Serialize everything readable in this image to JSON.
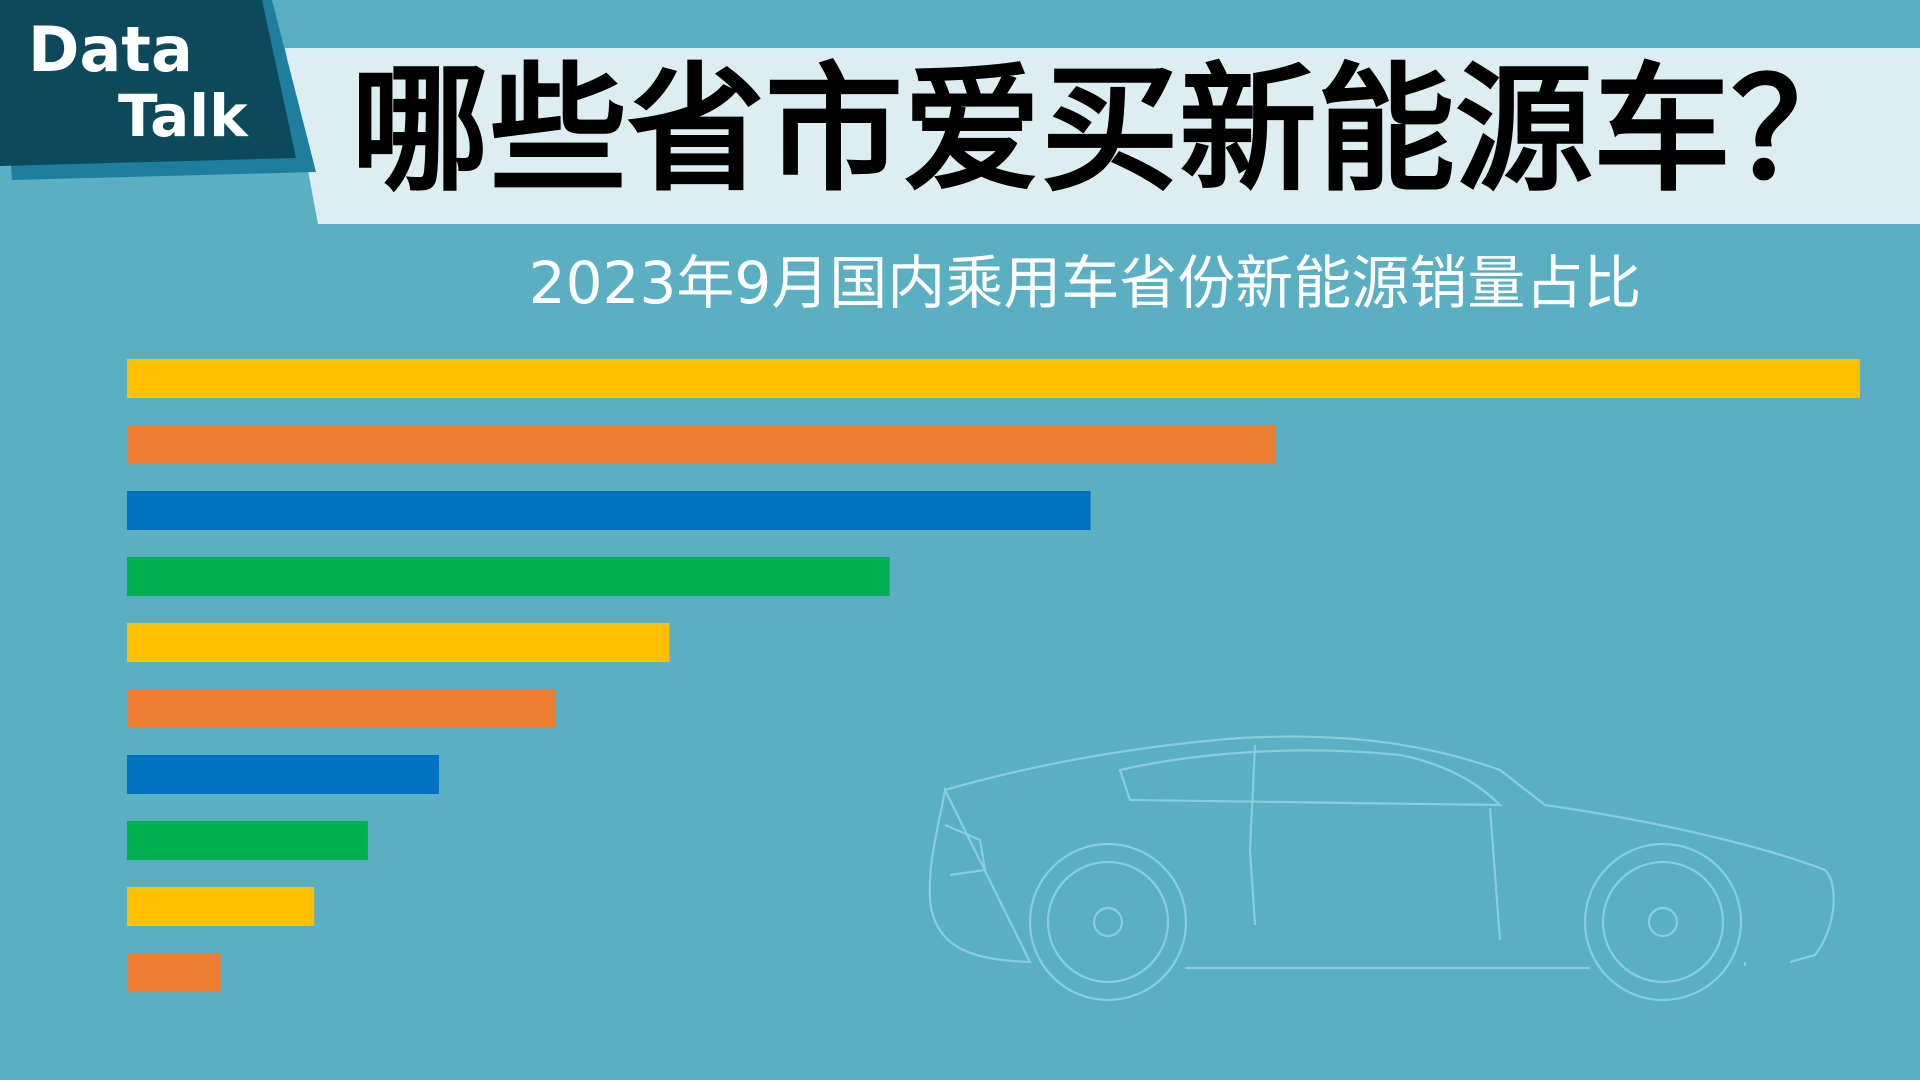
{
  "badge": [
    "Data",
    "Talk"
  ],
  "chart_data": {
    "type": "bar",
    "orientation": "horizontal",
    "title": "哪些省市爱买新能源车？",
    "subtitle": "2023年9月国内乘用车省份新能源销量占比",
    "categories": [
      null,
      null,
      null,
      null,
      null,
      null,
      null,
      null,
      null,
      null
    ],
    "values": [
      100,
      66.3,
      55.6,
      44,
      31.3,
      24.7,
      18,
      13.9,
      10.8,
      5.4
    ],
    "colors": [
      "#FFC000",
      "#ED7D31",
      "#0070C0",
      "#00B050",
      "#FFC000",
      "#ED7D31",
      "#0070C0",
      "#00B050",
      "#FFC000",
      "#ED7D31"
    ],
    "xlim": [
      0,
      100
    ]
  }
}
